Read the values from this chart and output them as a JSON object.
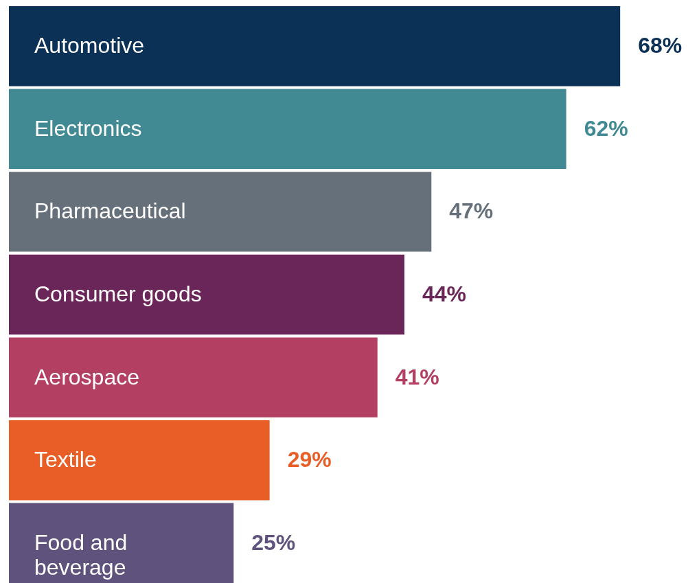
{
  "chart_data": {
    "type": "bar",
    "orientation": "horizontal",
    "categories": [
      "Automotive",
      "Electronics",
      "Pharmaceutical",
      "Consumer goods",
      "Aerospace",
      "Textile",
      "Food and beverage"
    ],
    "values": [
      68,
      62,
      47,
      44,
      41,
      29,
      25
    ],
    "colors": [
      "#0b3256",
      "#418a93",
      "#66707a",
      "#6b2659",
      "#b34062",
      "#e85e26",
      "#5f527d"
    ],
    "value_labels": [
      "68%",
      "62%",
      "47%",
      "44%",
      "41%",
      "29%",
      "25%"
    ]
  }
}
